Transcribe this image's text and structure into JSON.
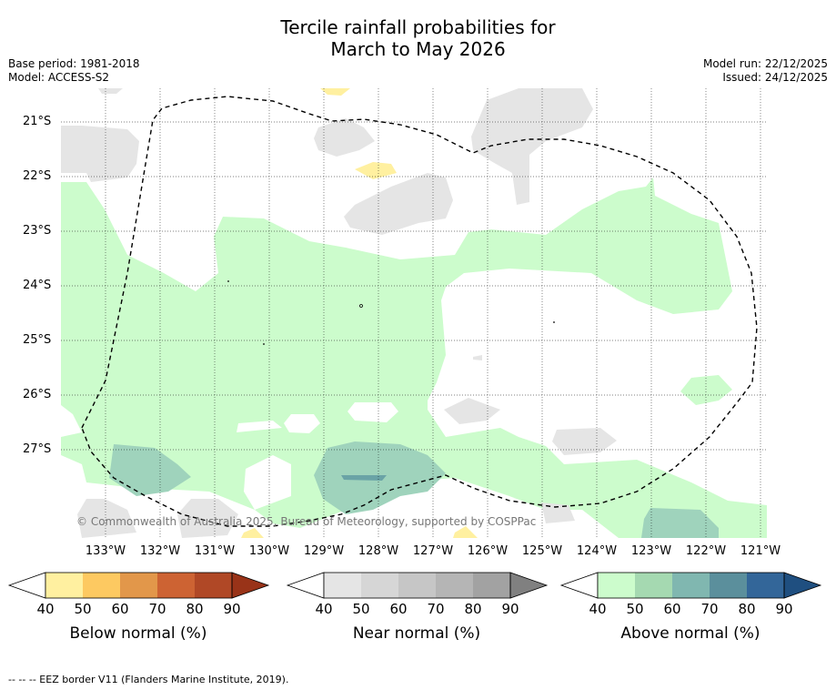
{
  "title_line1": "Tercile rainfall probabilities for",
  "title_line2": "March to May 2026",
  "base_period": "Base period: 1981-2018",
  "model": "Model: ACCESS-S2",
  "model_run": "Model run: 22/12/2025",
  "issued": "Issued: 24/12/2025",
  "copyright": "© Commonwealth of Australia 2025, Bureau of Meteorology, supported by COSPPac",
  "lat_labels": [
    "21°S",
    "22°S",
    "23°S",
    "24°S",
    "25°S",
    "26°S",
    "27°S"
  ],
  "lon_labels": [
    "133°W",
    "132°W",
    "131°W",
    "130°W",
    "129°W",
    "128°W",
    "127°W",
    "126°W",
    "125°W",
    "124°W",
    "123°W",
    "122°W",
    "121°W"
  ],
  "colorbars": [
    {
      "label": "Below normal (%)",
      "ticks": [
        "40",
        "50",
        "60",
        "70",
        "80",
        "90"
      ],
      "colors": [
        "#fff0a0",
        "#fdc961",
        "#e2974a",
        "#cd6333",
        "#b04826",
        "#993318"
      ]
    },
    {
      "label": "Near normal (%)",
      "ticks": [
        "40",
        "50",
        "60",
        "70",
        "80",
        "90"
      ],
      "colors": [
        "#e5e5e5",
        "#d6d6d6",
        "#c6c6c6",
        "#b5b5b5",
        "#a2a2a2",
        "#808080"
      ]
    },
    {
      "label": "Above normal (%)",
      "ticks": [
        "40",
        "50",
        "60",
        "70",
        "80",
        "90"
      ],
      "colors": [
        "#ccfccc",
        "#a5d9b1",
        "#80b7b0",
        "#5b8f9c",
        "#336699",
        "#1f4f80"
      ]
    }
  ],
  "footnote": "--  --  -- EEZ border V11 (Flanders Marine Institute, 2019).",
  "colors": {
    "above_light": "#ccfccc",
    "above_mid": "#9fd3bc",
    "above_dark": "#5b8f9c",
    "near_light": "#e5e5e5",
    "below_light": "#fff0a0"
  }
}
